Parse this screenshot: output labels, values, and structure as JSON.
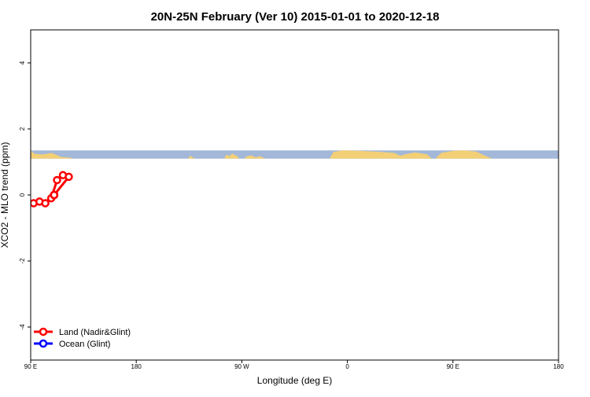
{
  "chart_data": {
    "type": "line",
    "title": "20N-25N February (Ver 10)   2015-01-01 to 2020-12-18",
    "xlabel": "Longitude (deg E)",
    "ylabel": "XCO2 - MLO trend (ppm)",
    "xlim": [
      90,
      540
    ],
    "ylim": [
      -5,
      5
    ],
    "x_ticks": [
      {
        "value": 90,
        "label": "90 E"
      },
      {
        "value": 180,
        "label": "180"
      },
      {
        "value": 270,
        "label": "90 W"
      },
      {
        "value": 360,
        "label": "0"
      },
      {
        "value": 450,
        "label": "90 E"
      },
      {
        "value": 540,
        "label": "180"
      }
    ],
    "y_ticks": [
      {
        "value": -4,
        "label": "-4"
      },
      {
        "value": -2,
        "label": "-2"
      },
      {
        "value": 0,
        "label": "0"
      },
      {
        "value": 2,
        "label": "2"
      },
      {
        "value": 4,
        "label": "4"
      }
    ],
    "legend_position": "bottom-left",
    "grid": false,
    "map_strip": {
      "y_range": [
        1.1,
        1.35
      ],
      "ocean_color": "#a3b8d8",
      "land_color": "#f3cf76"
    },
    "series": [
      {
        "name": "Land (Nadir&Glint)",
        "color": "#ff0000",
        "points": [
          [
            92.5,
            -0.25
          ],
          [
            97.5,
            -0.2
          ],
          [
            102.5,
            -0.25
          ],
          [
            107.5,
            -0.1
          ],
          [
            112.5,
            0.45
          ],
          [
            117.5,
            0.6
          ],
          [
            122.5,
            0.55
          ],
          [
            110,
            null
          ],
          [
            110,
            null
          ],
          [
            110,
            null
          ],
          [
            110,
            null
          ],
          [
            110,
            null
          ],
          [
            110,
            null
          ],
          [
            110,
            null
          ],
          [
            110,
            null
          ],
          [
            110,
            null
          ],
          [
            110,
            null
          ],
          [
            110,
            null
          ],
          [
            110,
            null
          ],
          [
            110,
            null
          ],
          [
            110,
            null
          ]
        ]
      }
    ]
  },
  "legend": {
    "land_label": "Land (Nadir&Glint)",
    "ocean_label": "Ocean (Glint)"
  }
}
